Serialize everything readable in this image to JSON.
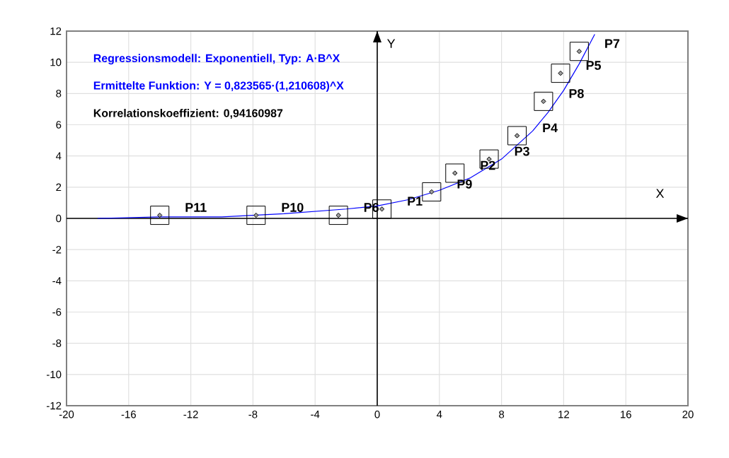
{
  "chart_data": {
    "type": "scatter",
    "xlabel": "X",
    "ylabel": "Y",
    "xlim": [
      -20,
      20
    ],
    "ylim": [
      -12,
      12
    ],
    "xticks": [
      -20,
      -16,
      -12,
      -8,
      -4,
      0,
      4,
      8,
      12,
      16,
      20
    ],
    "yticks": [
      -12,
      -10,
      -8,
      -6,
      -4,
      -2,
      0,
      2,
      4,
      6,
      8,
      10,
      12
    ],
    "grid": true,
    "marker": "diamond",
    "series": [
      {
        "color": "#a0a0a0",
        "x": [
          0.3,
          5.0,
          7.2,
          9.0,
          11.8,
          -2.5,
          13.0,
          10.7,
          3.5,
          -7.8,
          -14
        ],
        "values": [
          0.6,
          2.9,
          3.8,
          5.3,
          9.3,
          0.2,
          10.7,
          7.5,
          1.7,
          0.2,
          0.2
        ]
      },
      {
        "type": "line",
        "color": "#0000ff",
        "line_style": "solid",
        "marker": "none",
        "x": [
          -18,
          -14,
          -10,
          -6,
          -2,
          0,
          2,
          4,
          6,
          8,
          10,
          11,
          12,
          13,
          14
        ],
        "values": [
          0.0,
          0.1,
          0.1,
          0.3,
          0.6,
          0.8,
          1.2,
          1.8,
          2.6,
          3.8,
          5.6,
          6.8,
          8.2,
          9.9,
          11.8
        ]
      }
    ],
    "annotations": [
      "Regressionsmodell: Exponentiell, Typ: A·B^X",
      "Ermittelte Funktion: Y = 0,823565·(1,210608)^X",
      "Korrelationskoeffizient: 0,94160987",
      {
        "text": "P1",
        "x": 0.3,
        "y": 0.6
      },
      {
        "text": "P2",
        "x": 5.0,
        "y": 2.9
      },
      {
        "text": "P3",
        "x": 7.2,
        "y": 3.8
      },
      {
        "text": "P4",
        "x": 9.0,
        "y": 5.3
      },
      {
        "text": "P5",
        "x": 11.8,
        "y": 9.3
      },
      {
        "text": "P6",
        "x": -2.5,
        "y": 0.2
      },
      {
        "text": "P7",
        "x": 13.0,
        "y": 10.7
      },
      {
        "text": "P8",
        "x": 10.7,
        "y": 7.5
      },
      {
        "text": "P9",
        "x": 3.5,
        "y": 1.7
      },
      {
        "text": "P10",
        "x": -7.8,
        "y": 0.2
      },
      {
        "text": "P11",
        "x": -14,
        "y": 0.2
      }
    ]
  }
}
